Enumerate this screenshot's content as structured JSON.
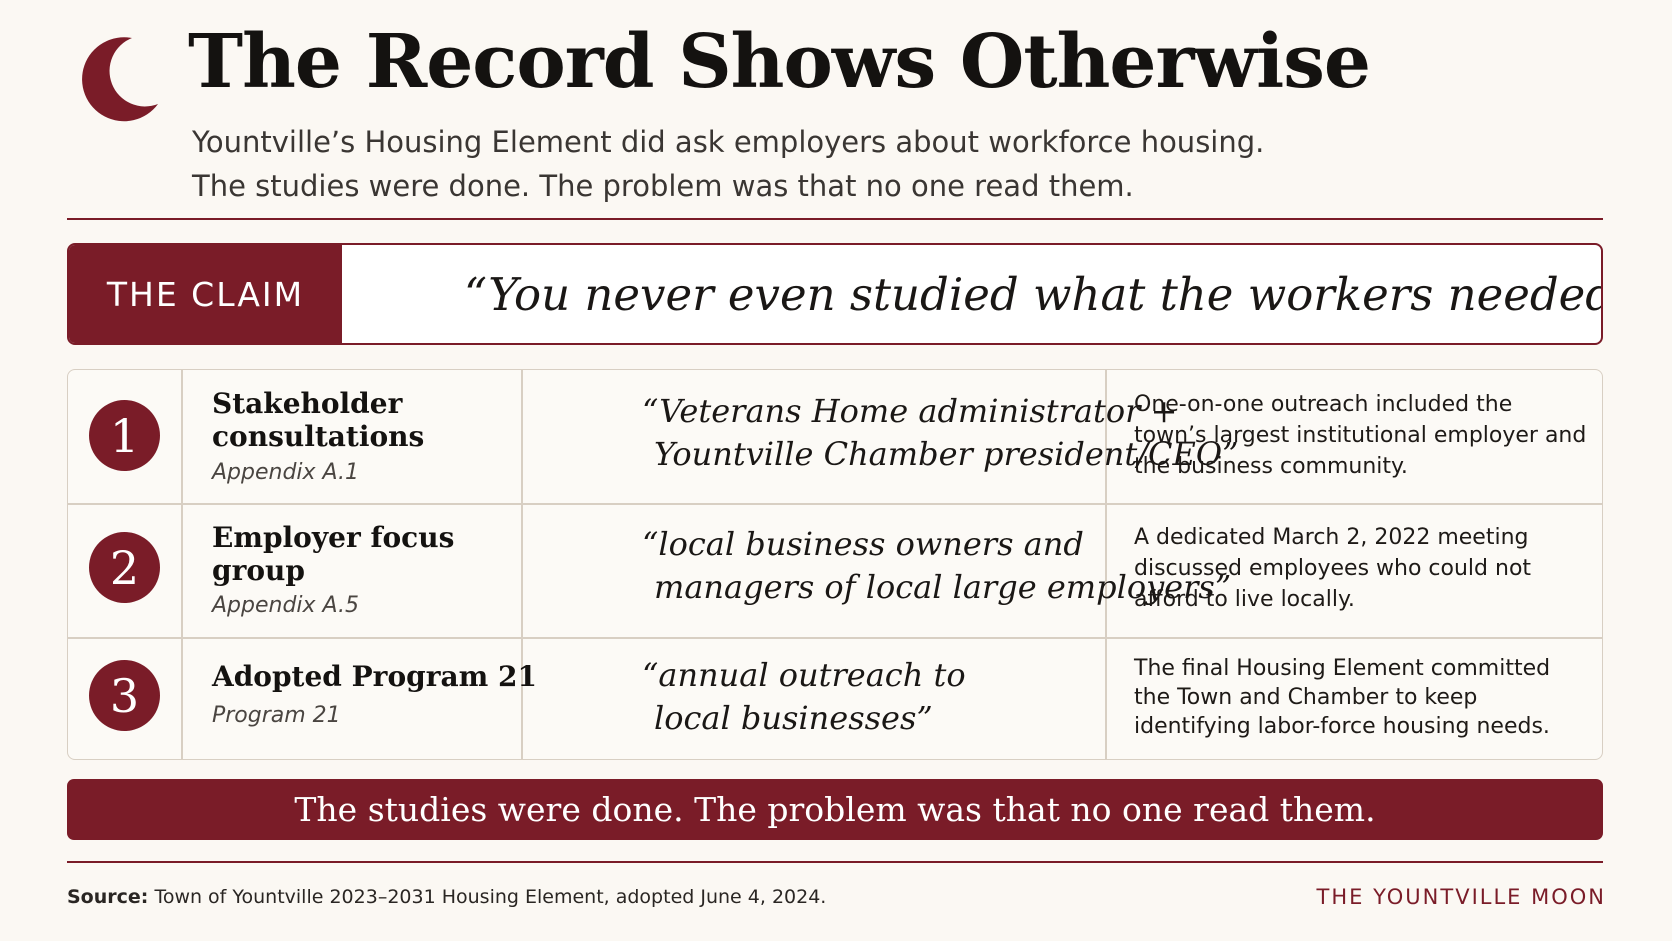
{
  "header": {
    "logo_icon": "crescent-moon-icon",
    "title": "The Record Shows Otherwise",
    "subtitle_line1": "Yountville’s Housing Element did ask employers about workforce housing.",
    "subtitle_line2": "The studies were done. The problem was that no one read them."
  },
  "claim": {
    "tag": "THE CLAIM",
    "quote": "“You never even studied what the workers needed.”"
  },
  "rows": [
    {
      "number": "1",
      "title": "Stakeholder consultations",
      "reference": "Appendix A.1",
      "quote_line1": "“Veterans Home administrator +",
      "quote_line2": "Yountville Chamber president/CEO”",
      "description": "One-on-one outreach included the town’s largest institutional employer and the business community."
    },
    {
      "number": "2",
      "title": "Employer focus group",
      "reference": "Appendix A.5",
      "quote_line1": "“local business owners and",
      "quote_line2": "managers of local large employers”",
      "description": "A dedicated March 2, 2022 meeting discussed employees who could not afford to live locally."
    },
    {
      "number": "3",
      "title": "Adopted Program 21",
      "reference": "Program 21",
      "quote_line1": "“annual outreach to",
      "quote_line2": "local businesses”",
      "description": "The final Housing Element committed the Town and Chamber to keep identifying labor-force housing needs."
    }
  ],
  "banner": {
    "text": "The studies were done. The problem was that no one read them."
  },
  "footer": {
    "source_label": "Source:",
    "source_text": "Town of Yountville 2023–2031 Housing Element, adopted June 4, 2024.",
    "brand": "THE YOUNTVILLE MOON"
  },
  "colors": {
    "accent": "#7a1c28",
    "background": "#fbf8f3",
    "rule": "#d8cfc3"
  }
}
